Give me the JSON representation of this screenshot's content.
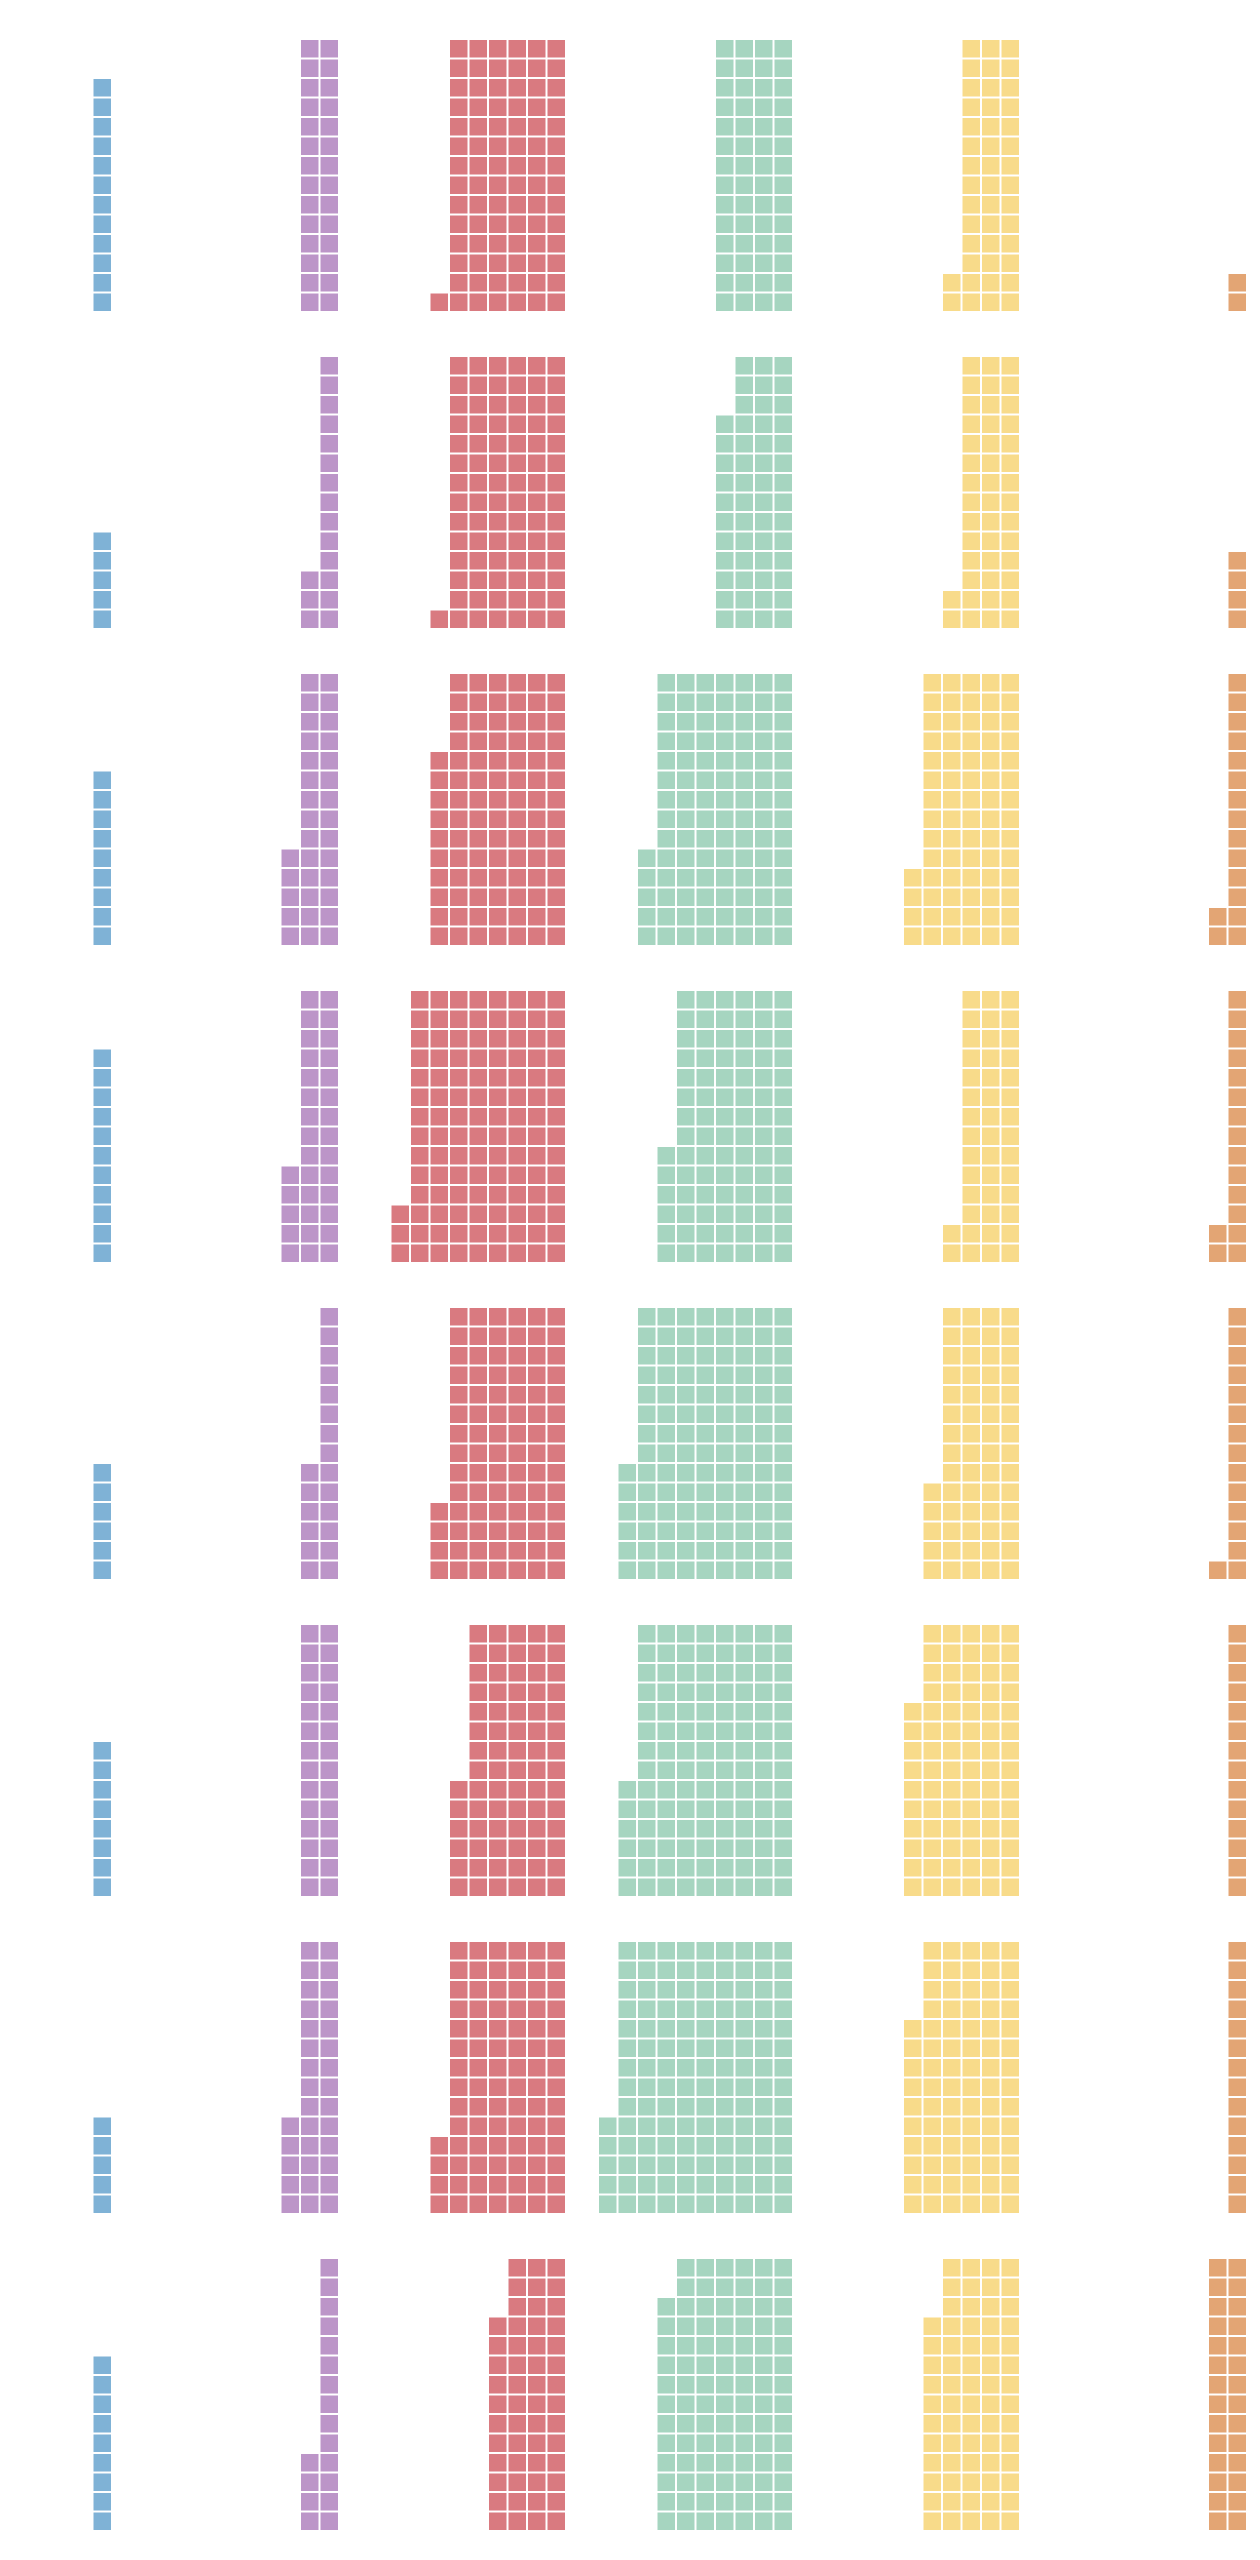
{
  "chart_data": {
    "type": "waffle",
    "grid": false,
    "legend": "none",
    "colors": [
      "#7fb2d6",
      "#bc95c8",
      "#d97a80",
      "#a6d5c0",
      "#f8db8a",
      "#e3a574"
    ],
    "series": [
      {
        "values": [
          12,
          5,
          9,
          11,
          6,
          8,
          5,
          9
        ]
      },
      {
        "values": [
          28,
          17,
          33,
          33,
          20,
          28,
          33,
          18
        ]
      },
      {
        "values": [
          85,
          85,
          94,
          115,
          88,
          76,
          88,
          53
        ]
      },
      {
        "values": [
          56,
          53,
          103,
          90,
          118,
          118,
          131,
          96
        ]
      },
      {
        "values": [
          44,
          44,
          74,
          44,
          61,
          80,
          80,
          67
        ]
      },
      {
        "values": [
          2,
          4,
          16,
          16,
          15,
          14,
          14,
          28
        ]
      }
    ]
  }
}
